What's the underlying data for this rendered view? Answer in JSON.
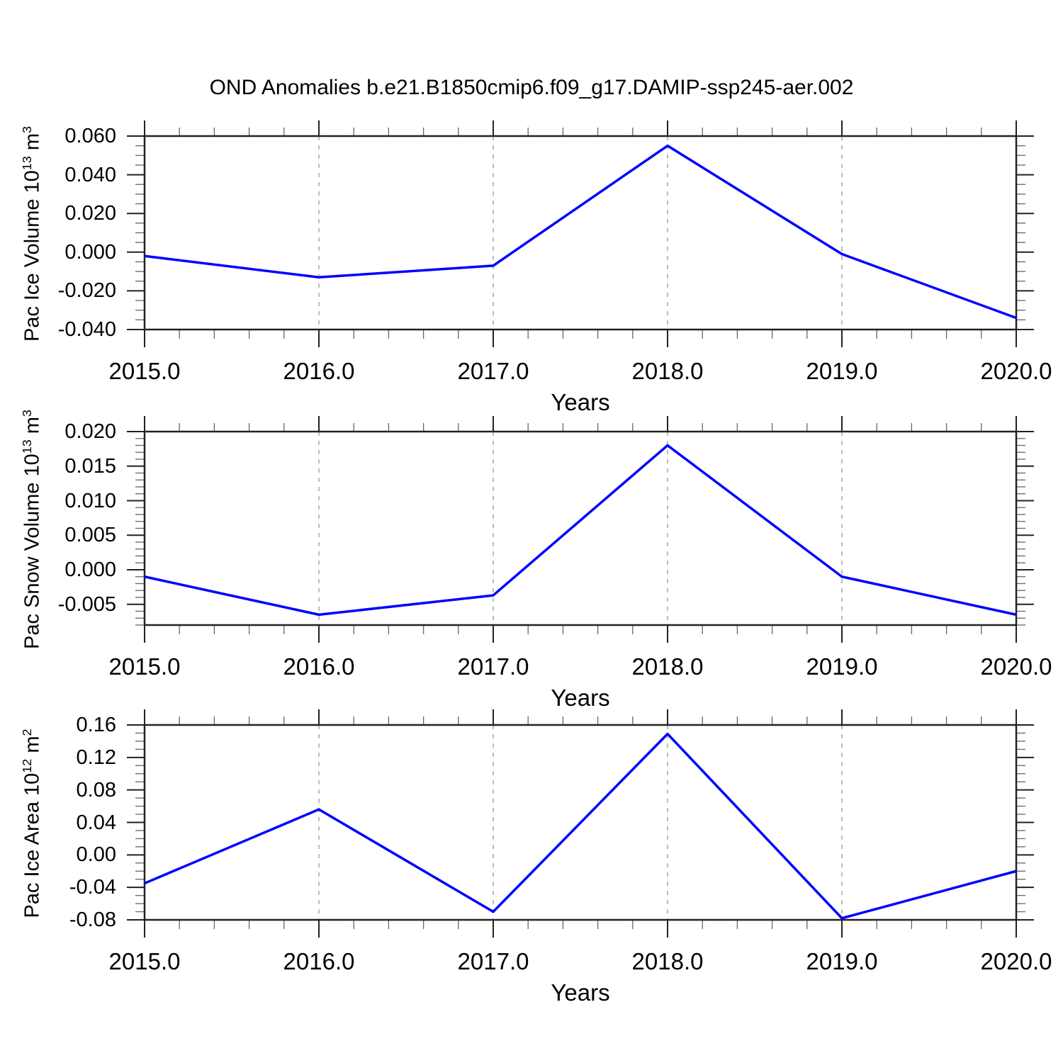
{
  "title": "OND Anomalies b.e21.B1850cmip6.f09_g17.DAMIP-ssp245-aer.002",
  "colors": {
    "line": "#0000ff",
    "grid": "#999999",
    "frame": "#222222",
    "minor_tick": "#666666"
  },
  "chart_data": [
    {
      "type": "line",
      "x": [
        2015,
        2016,
        2017,
        2018,
        2019,
        2020
      ],
      "values": [
        -0.002,
        -0.013,
        -0.007,
        0.055,
        -0.001,
        -0.034
      ],
      "series_name": "Pac Ice Volume anomaly",
      "xlabel": "Years",
      "ylabel": {
        "base": "Pac Ice Volume 10",
        "exp": "13",
        "unit": " m",
        "unit_exp": "3"
      },
      "xlim": [
        2015,
        2020
      ],
      "ylim": [
        -0.04,
        0.06
      ],
      "xtick_values": [
        2015,
        2016,
        2017,
        2018,
        2019,
        2020
      ],
      "xtick_labels": [
        "2015.0",
        "2016.0",
        "2017.0",
        "2018.0",
        "2019.0",
        "2020.0"
      ],
      "xminor_step": 0.2,
      "ytick_values": [
        0.06,
        0.04,
        0.02,
        0.0,
        -0.02,
        -0.04
      ],
      "ytick_labels": [
        "0.060",
        "0.040",
        "0.020",
        "0.000",
        "-0.020",
        "-0.040"
      ],
      "yminor_step": 0.005,
      "grid_x": [
        2016,
        2017,
        2018,
        2019
      ],
      "grid_on": "vertical-dashed",
      "legend": "none"
    },
    {
      "type": "line",
      "x": [
        2015,
        2016,
        2017,
        2018,
        2019,
        2020
      ],
      "values": [
        -0.001,
        -0.0065,
        -0.0037,
        0.018,
        -0.001,
        -0.0065
      ],
      "series_name": "Pac Snow Volume anomaly",
      "xlabel": "Years",
      "ylabel": {
        "base": "Pac Snow Volume 10",
        "exp": "13",
        "unit": " m",
        "unit_exp": "3"
      },
      "xlim": [
        2015,
        2020
      ],
      "ylim": [
        -0.008,
        0.02
      ],
      "xtick_values": [
        2015,
        2016,
        2017,
        2018,
        2019,
        2020
      ],
      "xtick_labels": [
        "2015.0",
        "2016.0",
        "2017.0",
        "2018.0",
        "2019.0",
        "2020.0"
      ],
      "xminor_step": 0.2,
      "ytick_values": [
        0.02,
        0.015,
        0.01,
        0.005,
        0.0,
        -0.005
      ],
      "ytick_labels": [
        "0.020",
        "0.015",
        "0.010",
        "0.005",
        "0.000",
        "-0.005"
      ],
      "yminor_step": 0.001,
      "grid_x": [
        2016,
        2017,
        2018,
        2019
      ],
      "grid_on": "vertical-dashed",
      "legend": "none"
    },
    {
      "type": "line",
      "x": [
        2015,
        2016,
        2017,
        2018,
        2019,
        2020
      ],
      "values": [
        -0.035,
        0.056,
        -0.07,
        0.149,
        -0.078,
        -0.02
      ],
      "series_name": "Pac Ice Area anomaly",
      "xlabel": "Years",
      "ylabel": {
        "base": "Pac Ice Area 10",
        "exp": "12",
        "unit": " m",
        "unit_exp": "2"
      },
      "xlim": [
        2015,
        2020
      ],
      "ylim": [
        -0.08,
        0.16
      ],
      "xtick_values": [
        2015,
        2016,
        2017,
        2018,
        2019,
        2020
      ],
      "xtick_labels": [
        "2015.0",
        "2016.0",
        "2017.0",
        "2018.0",
        "2019.0",
        "2020.0"
      ],
      "xminor_step": 0.2,
      "ytick_values": [
        0.16,
        0.12,
        0.08,
        0.04,
        0.0,
        -0.04,
        -0.08
      ],
      "ytick_labels": [
        "0.16",
        "0.12",
        "0.08",
        "0.04",
        "0.00",
        "-0.04",
        "-0.08"
      ],
      "yminor_step": 0.01,
      "grid_x": [
        2016,
        2017,
        2018,
        2019
      ],
      "grid_on": "vertical-dashed",
      "legend": "none"
    }
  ]
}
